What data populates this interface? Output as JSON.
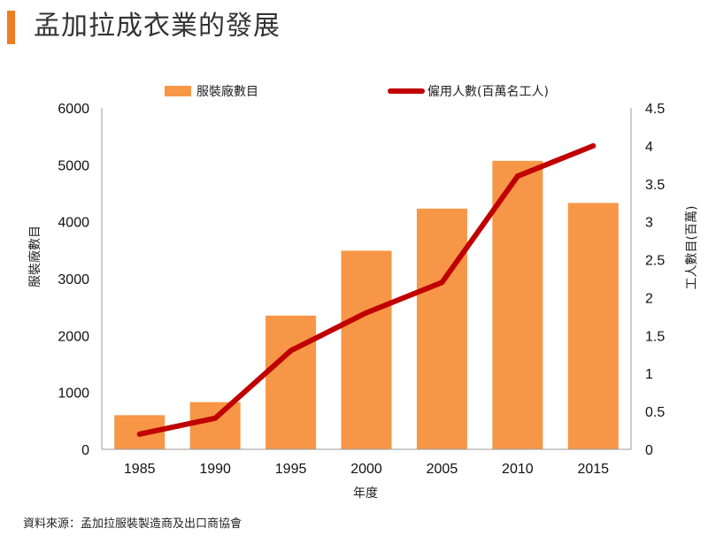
{
  "page": {
    "title": "孟加拉成衣業的發展",
    "source": "資料來源：孟加拉服裝製造商及出口商協會"
  },
  "colors": {
    "accent": "#ef7d22",
    "bar": "#f79646",
    "line": "#c00000"
  },
  "chart_data": {
    "type": "bar",
    "categories": [
      "1985",
      "1990",
      "1995",
      "2000",
      "2005",
      "2010",
      "2015"
    ],
    "xlabel": "年度",
    "ylabel": "服裝廠數目",
    "y2label": "工人數目(百萬)",
    "ylim": [
      0,
      6000
    ],
    "y2lim": [
      0,
      4.5
    ],
    "yticks": [
      "0",
      "1000",
      "2000",
      "3000",
      "4000",
      "5000",
      "6000"
    ],
    "y2ticks": [
      "0",
      "0.5",
      "1",
      "1.5",
      "2",
      "2.5",
      "3",
      "3.5",
      "4",
      "4.5"
    ],
    "legend_position": "top",
    "grid": false,
    "series": [
      {
        "name": "服裝廠數目",
        "type": "bar",
        "axis": "left",
        "values": [
          600,
          830,
          2350,
          3490,
          4230,
          5070,
          4330
        ]
      },
      {
        "name": "僱用人數(百萬名工人)",
        "type": "line",
        "axis": "right",
        "values": [
          0.2,
          0.41,
          1.3,
          1.8,
          2.2,
          3.6,
          4.0
        ]
      }
    ]
  }
}
